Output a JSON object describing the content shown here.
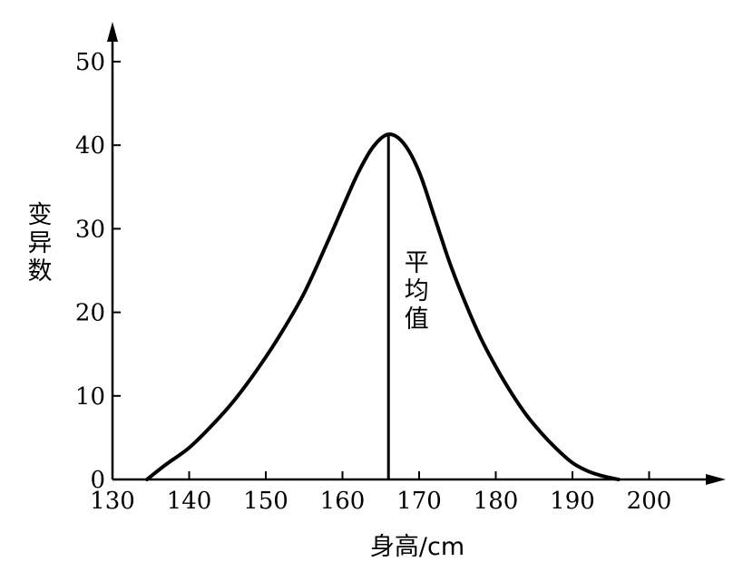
{
  "chart_data": {
    "type": "line",
    "title": "",
    "xlabel": "身高/cm",
    "ylabel": "变异数",
    "xlim": [
      130,
      208
    ],
    "ylim": [
      0,
      54
    ],
    "x_ticks": [
      130,
      140,
      150,
      160,
      170,
      180,
      190,
      200
    ],
    "y_ticks": [
      0,
      10,
      20,
      30,
      40,
      50
    ],
    "grid": false,
    "legend": "none",
    "series": [
      {
        "color": "#000000",
        "points": [
          [
            134.5,
            0
          ],
          [
            137,
            1.8
          ],
          [
            140,
            3.8
          ],
          [
            143,
            6.5
          ],
          [
            146,
            9.6
          ],
          [
            149,
            13.3
          ],
          [
            152,
            17.5
          ],
          [
            155,
            22.3
          ],
          [
            158,
            28.3
          ],
          [
            160,
            32.5
          ],
          [
            162,
            36.6
          ],
          [
            164,
            39.8
          ],
          [
            166,
            41.3
          ],
          [
            168,
            40.2
          ],
          [
            170,
            36.8
          ],
          [
            172,
            31.4
          ],
          [
            174,
            25.9
          ],
          [
            176,
            21.2
          ],
          [
            178,
            17.0
          ],
          [
            180,
            13.5
          ],
          [
            182,
            10.4
          ],
          [
            184,
            7.7
          ],
          [
            186,
            5.5
          ],
          [
            188,
            3.6
          ],
          [
            190,
            2.0
          ],
          [
            192,
            1.0
          ],
          [
            194,
            0.4
          ],
          [
            196,
            0
          ]
        ]
      }
    ],
    "mean_line": {
      "x": 166,
      "y": 41.3,
      "label": "平均值"
    }
  }
}
